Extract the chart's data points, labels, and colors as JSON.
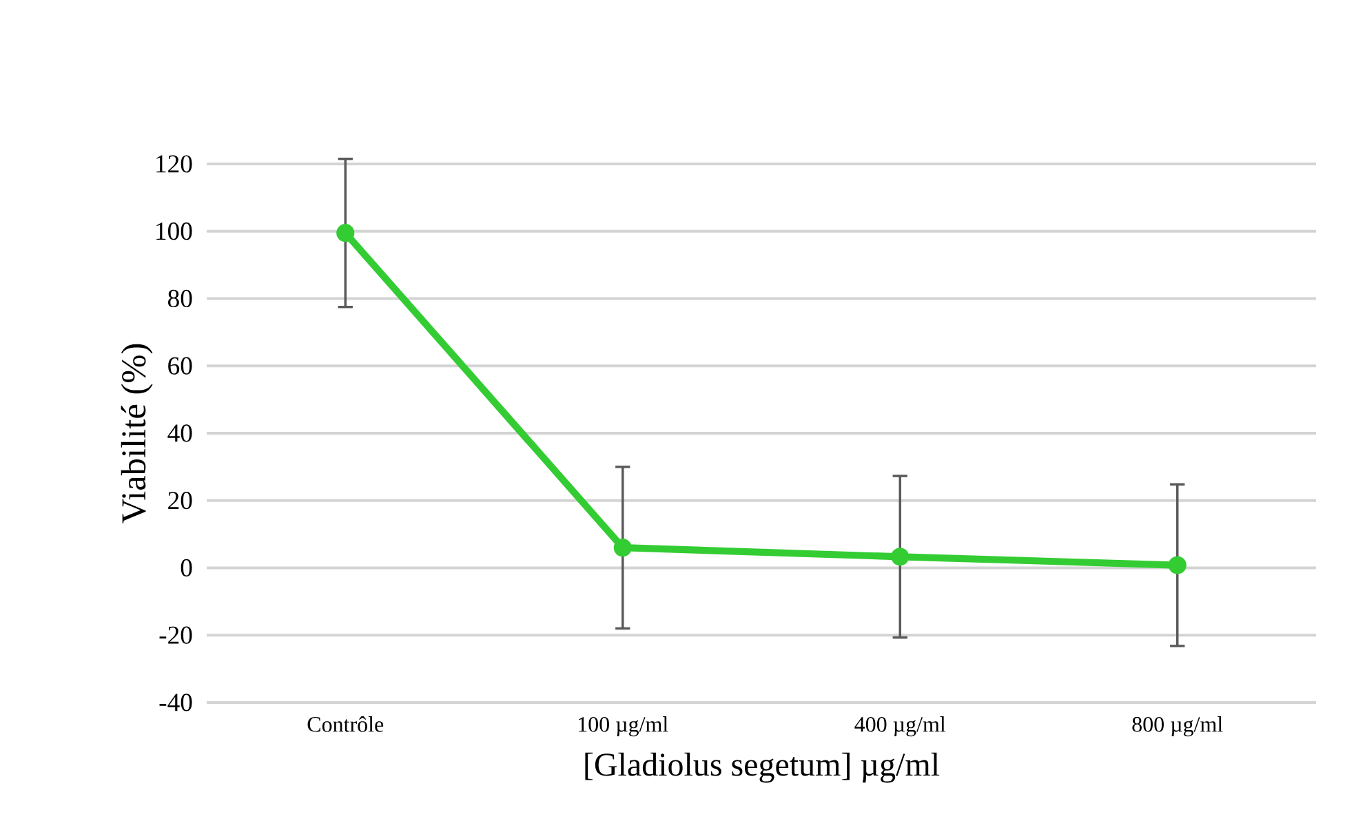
{
  "chart_data": {
    "type": "line",
    "xlabel": "[Gladiolus segetum] µg/ml",
    "ylabel": "Viabilité (%)",
    "categories": [
      "Contrôle",
      "100 µg/ml",
      "400 µg/ml",
      "800 µg/ml"
    ],
    "series": [
      {
        "color": "#33cc33",
        "values": [
          99.5,
          6,
          3.3,
          0.8
        ],
        "errors": [
          22,
          24,
          24,
          24
        ]
      }
    ],
    "ylim": [
      -40,
      120
    ],
    "yticks": [
      -40,
      -20,
      0,
      20,
      40,
      60,
      80,
      100,
      120
    ],
    "grid": "y",
    "marker": "circle",
    "line_style": "solid"
  }
}
